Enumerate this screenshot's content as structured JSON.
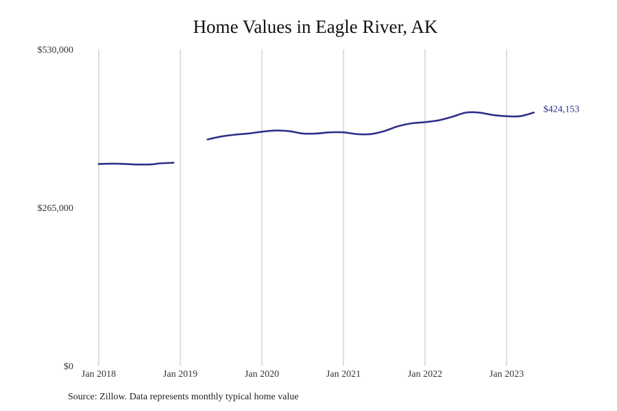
{
  "title": "Home Values in Eagle River, AK",
  "source": "Source: Zillow. Data represents monthly typical home value",
  "chart_data": {
    "type": "line",
    "title": "Home Values in Eagle River, AK",
    "xlabel": "",
    "ylabel": "",
    "ylim": [
      0,
      530000
    ],
    "y_ticks": [
      {
        "value": 0,
        "label": "$0"
      },
      {
        "value": 265000,
        "label": "$265,000"
      },
      {
        "value": 530000,
        "label": "$530,000"
      }
    ],
    "x_ticks": [
      {
        "value": "2018-01",
        "label": "Jan 2018"
      },
      {
        "value": "2019-01",
        "label": "Jan 2019"
      },
      {
        "value": "2020-01",
        "label": "Jan 2020"
      },
      {
        "value": "2021-01",
        "label": "Jan 2021"
      },
      {
        "value": "2022-01",
        "label": "Jan 2022"
      },
      {
        "value": "2023-01",
        "label": "Jan 2023"
      }
    ],
    "grid": "vertical",
    "line_color": "#2e2e8a",
    "end_label": "$424,153",
    "series": [
      {
        "segments": [
          [
            [
              "2018-01",
              338000
            ],
            [
              "2018-03",
              338500
            ],
            [
              "2018-05",
              338000
            ],
            [
              "2018-07",
              337000
            ],
            [
              "2018-09",
              337500
            ],
            [
              "2018-10",
              339000
            ],
            [
              "2018-12",
              340000
            ]
          ],
          [
            [
              "2019-05",
              379000
            ],
            [
              "2019-07",
              384000
            ],
            [
              "2019-09",
              387000
            ],
            [
              "2019-11",
              389000
            ],
            [
              "2020-01",
              392000
            ],
            [
              "2020-03",
              394000
            ],
            [
              "2020-05",
              393000
            ],
            [
              "2020-07",
              389000
            ],
            [
              "2020-09",
              389000
            ],
            [
              "2020-11",
              391000
            ],
            [
              "2021-01",
              391000
            ],
            [
              "2021-03",
              388000
            ],
            [
              "2021-05",
              388000
            ],
            [
              "2021-07",
              393000
            ],
            [
              "2021-09",
              401000
            ],
            [
              "2021-11",
              406000
            ],
            [
              "2022-01",
              408000
            ],
            [
              "2022-03",
              411000
            ],
            [
              "2022-05",
              417000
            ],
            [
              "2022-07",
              424000
            ],
            [
              "2022-09",
              424000
            ],
            [
              "2022-11",
              420000
            ],
            [
              "2023-01",
              418000
            ],
            [
              "2023-03",
              418000
            ],
            [
              "2023-05",
              424153
            ]
          ]
        ]
      }
    ]
  }
}
